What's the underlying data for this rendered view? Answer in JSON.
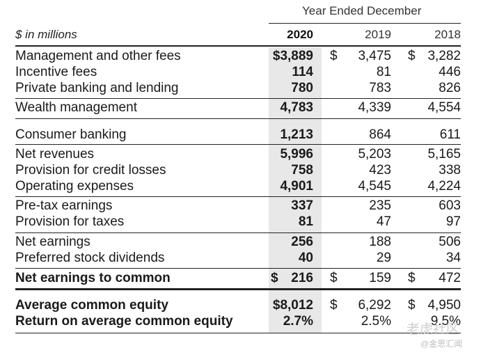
{
  "header": {
    "period_label": "Year Ended December",
    "units": "$ in millions",
    "years": [
      "2020",
      "2019",
      "2018"
    ]
  },
  "rows": [
    {
      "label": "Management and other fees",
      "v2020": "$3,889",
      "d2019": "$",
      "v2019": "3,475",
      "d2018": "$",
      "v2018": "3,282"
    },
    {
      "label": "Incentive fees",
      "v2020": "114",
      "v2019": "81",
      "v2018": "446"
    },
    {
      "label": "Private banking and lending",
      "v2020": "780",
      "v2019": "783",
      "v2018": "826"
    },
    {
      "label": "Wealth management",
      "v2020": "4,783",
      "v2019": "4,339",
      "v2018": "4,554"
    },
    {
      "label": "Consumer banking",
      "v2020": "1,213",
      "v2019": "864",
      "v2018": "611"
    },
    {
      "label": "Net revenues",
      "v2020": "5,996",
      "v2019": "5,203",
      "v2018": "5,165"
    },
    {
      "label": "Provision for credit losses",
      "v2020": "758",
      "v2019": "423",
      "v2018": "338"
    },
    {
      "label": "Operating expenses",
      "v2020": "4,901",
      "v2019": "4,545",
      "v2018": "4,224"
    },
    {
      "label": "Pre-tax earnings",
      "v2020": "337",
      "v2019": "235",
      "v2018": "603"
    },
    {
      "label": "Provision for taxes",
      "v2020": "81",
      "v2019": "47",
      "v2018": "97"
    },
    {
      "label": "Net earnings",
      "v2020": "256",
      "v2019": "188",
      "v2018": "506"
    },
    {
      "label": "Preferred stock dividends",
      "v2020": "40",
      "v2019": "29",
      "v2018": "34"
    },
    {
      "label": "Net earnings to common",
      "d2020": "$",
      "v2020": "216",
      "d2019": "$",
      "v2019": "159",
      "d2018": "$",
      "v2018": "472"
    },
    {
      "label": "Average common equity",
      "v2020": "$8,012",
      "d2019": "$",
      "v2019": "6,292",
      "d2018": "$",
      "v2018": "4,950"
    },
    {
      "label": "Return on average common equity",
      "v2020": "2.7%",
      "v2019": "2.5%",
      "v2018": "9.5%"
    }
  ],
  "watermark": {
    "main": "老虎社区",
    "sub": "@金思汇闻"
  }
}
